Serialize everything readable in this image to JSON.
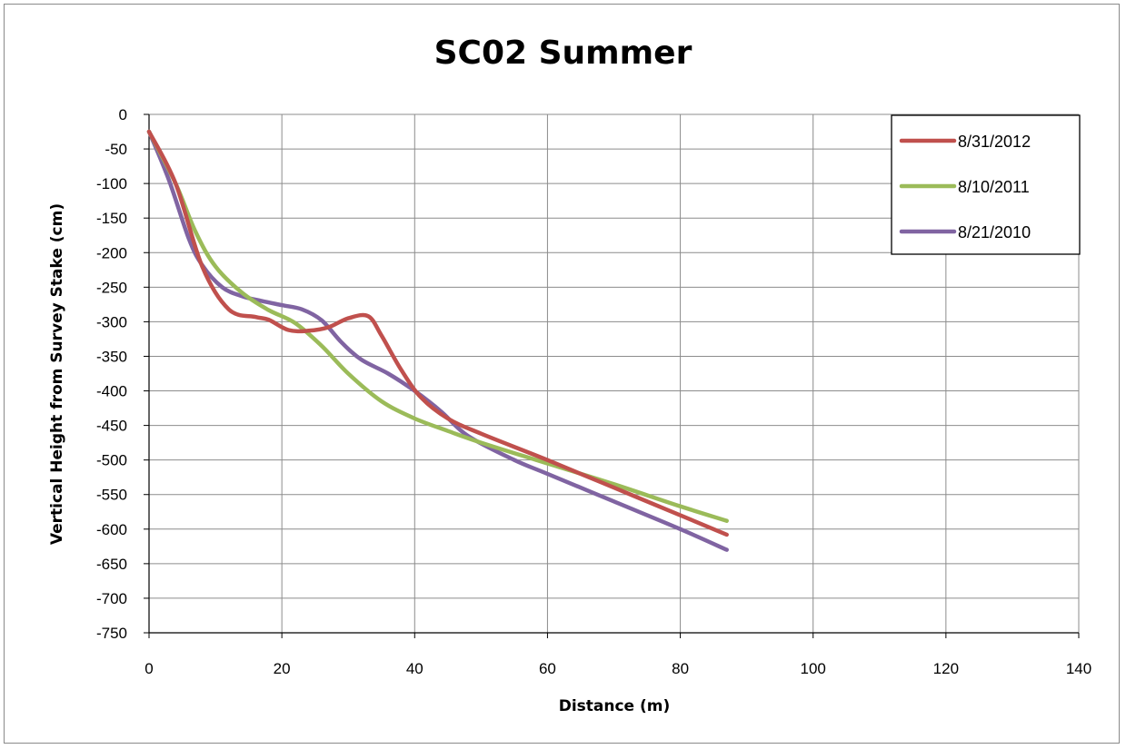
{
  "chart_data": {
    "type": "line",
    "title": "SC02 Summer",
    "xlabel": "Distance  (m)",
    "ylabel": "Vertical Height from Survey Stake (cm)",
    "xlim": [
      0,
      140
    ],
    "ylim": [
      -750,
      0
    ],
    "xticks": [
      "0",
      "20",
      "40",
      "60",
      "80",
      "100",
      "120",
      "140"
    ],
    "yticks": [
      "0",
      "-50",
      "-100",
      "-150",
      "-200",
      "-250",
      "-300",
      "-350",
      "-400",
      "-450",
      "-500",
      "-550",
      "-600",
      "-650",
      "-700",
      "-750"
    ],
    "grid": true,
    "legend_position": "top-right",
    "series": [
      {
        "name": "8/31/2012",
        "color": "#c0504d",
        "x": [
          0,
          4,
          8,
          12,
          16,
          18,
          21,
          24,
          27,
          30,
          33,
          35,
          38,
          41,
          45,
          50,
          60,
          70,
          80,
          87
        ],
        "y": [
          -25,
          -100,
          -220,
          -282,
          -293,
          -297,
          -312,
          -313,
          -308,
          -295,
          -292,
          -320,
          -370,
          -410,
          -440,
          -462,
          -500,
          -540,
          -580,
          -608
        ]
      },
      {
        "name": "8/10/2011",
        "color": "#9bbb59",
        "x": [
          0,
          4,
          7,
          10,
          14,
          18,
          22,
          26,
          30,
          35,
          40,
          45,
          50,
          60,
          70,
          80,
          87
        ],
        "y": [
          -25,
          -100,
          -170,
          -220,
          -258,
          -283,
          -302,
          -335,
          -375,
          -415,
          -440,
          -458,
          -475,
          -505,
          -535,
          -567,
          -588
        ]
      },
      {
        "name": "8/21/2010",
        "color": "#8064a2",
        "x": [
          0,
          3,
          6,
          8,
          11,
          14,
          17,
          20,
          23,
          26,
          29,
          32,
          36,
          40,
          44,
          48,
          55,
          60,
          70,
          80,
          87
        ],
        "y": [
          -25,
          -95,
          -180,
          -218,
          -250,
          -263,
          -270,
          -276,
          -282,
          -298,
          -330,
          -355,
          -375,
          -400,
          -430,
          -465,
          -500,
          -520,
          -560,
          -600,
          -630
        ]
      }
    ]
  }
}
